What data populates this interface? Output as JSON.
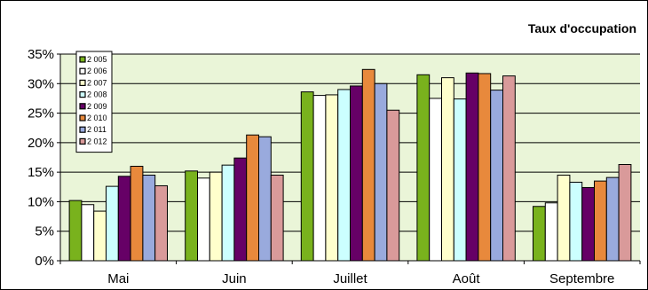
{
  "chart_data": {
    "type": "bar",
    "title": "Taux d'occupation",
    "xlabel": "",
    "ylabel": "",
    "categories": [
      "Mai",
      "Juin",
      "Juillet",
      "Août",
      "Septembre"
    ],
    "ylim": [
      0,
      35
    ],
    "yticks": [
      "0%",
      "5%",
      "10%",
      "15%",
      "20%",
      "25%",
      "30%",
      "35%"
    ],
    "grid": true,
    "legend_position": "top-left",
    "series": [
      {
        "name": "2 005",
        "color": "#79B21D",
        "values": [
          10.2,
          15.2,
          28.6,
          31.5,
          9.2
        ]
      },
      {
        "name": "2 006",
        "color": "#FFFFFF",
        "values": [
          9.5,
          14.0,
          28.0,
          27.5,
          9.8
        ]
      },
      {
        "name": "2 007",
        "color": "#FFFFCC",
        "values": [
          8.4,
          15.0,
          28.1,
          31.0,
          14.5
        ]
      },
      {
        "name": "2 008",
        "color": "#CCFFFF",
        "values": [
          12.6,
          16.2,
          29.0,
          27.4,
          13.3
        ]
      },
      {
        "name": "2 009",
        "color": "#660066",
        "values": [
          14.3,
          17.4,
          29.6,
          31.8,
          12.4
        ]
      },
      {
        "name": "2 010",
        "color": "#E8893C",
        "values": [
          16.0,
          21.3,
          32.4,
          31.7,
          13.5
        ]
      },
      {
        "name": "2 011",
        "color": "#99AADD",
        "values": [
          14.5,
          21.0,
          30.0,
          28.9,
          14.1
        ]
      },
      {
        "name": "2 012",
        "color": "#D99A9A",
        "values": [
          12.7,
          14.5,
          25.5,
          31.3,
          16.3
        ]
      }
    ]
  }
}
